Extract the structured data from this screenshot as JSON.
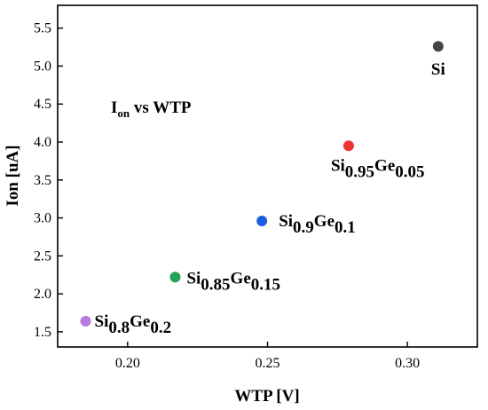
{
  "chart_data": {
    "type": "scatter",
    "title": "",
    "annotation": {
      "main": "I",
      "sub": "on",
      "rest": " vs WTP"
    },
    "xlabel": "WTP [V]",
    "ylabel": "Ion [uA]",
    "xlim": [
      0.175,
      0.325
    ],
    "ylim": [
      1.3,
      5.8
    ],
    "xticks": [
      0.2,
      0.25,
      0.3
    ],
    "xtick_labels": [
      "0.20",
      "0.25",
      "0.30"
    ],
    "yticks": [
      1.5,
      2.0,
      2.5,
      3.0,
      3.5,
      4.0,
      4.5,
      5.0,
      5.5
    ],
    "ytick_labels": [
      "1.5",
      "2.0",
      "2.5",
      "3.0",
      "3.5",
      "4.0",
      "4.5",
      "5.0",
      "5.5"
    ],
    "grid": false,
    "legend": "none",
    "points": [
      {
        "x": 0.185,
        "y": 1.64,
        "color": "#b57be0",
        "label": [
          {
            "t": "Si",
            "s": ""
          },
          {
            "t": "0.8",
            "s": "sub"
          },
          {
            "t": "Ge",
            "s": ""
          },
          {
            "t": "0.2",
            "s": "sub"
          }
        ]
      },
      {
        "x": 0.217,
        "y": 2.22,
        "color": "#22a355",
        "label": [
          {
            "t": "Si",
            "s": ""
          },
          {
            "t": "0.85",
            "s": "sub"
          },
          {
            "t": "Ge",
            "s": ""
          },
          {
            "t": "0.15",
            "s": "sub"
          }
        ]
      },
      {
        "x": 0.248,
        "y": 2.96,
        "color": "#1a5fe0",
        "label": [
          {
            "t": "Si",
            "s": ""
          },
          {
            "t": "0.9",
            "s": "sub"
          },
          {
            "t": "Ge",
            "s": ""
          },
          {
            "t": "0.1",
            "s": "sub"
          }
        ]
      },
      {
        "x": 0.279,
        "y": 3.95,
        "color": "#ee3333",
        "label": [
          {
            "t": "Si",
            "s": ""
          },
          {
            "t": "0.95",
            "s": "sub"
          },
          {
            "t": "Ge",
            "s": ""
          },
          {
            "t": "0.05",
            "s": "sub"
          }
        ]
      },
      {
        "x": 0.311,
        "y": 5.26,
        "color": "#444444",
        "label": [
          {
            "t": "Si",
            "s": ""
          }
        ]
      }
    ]
  }
}
